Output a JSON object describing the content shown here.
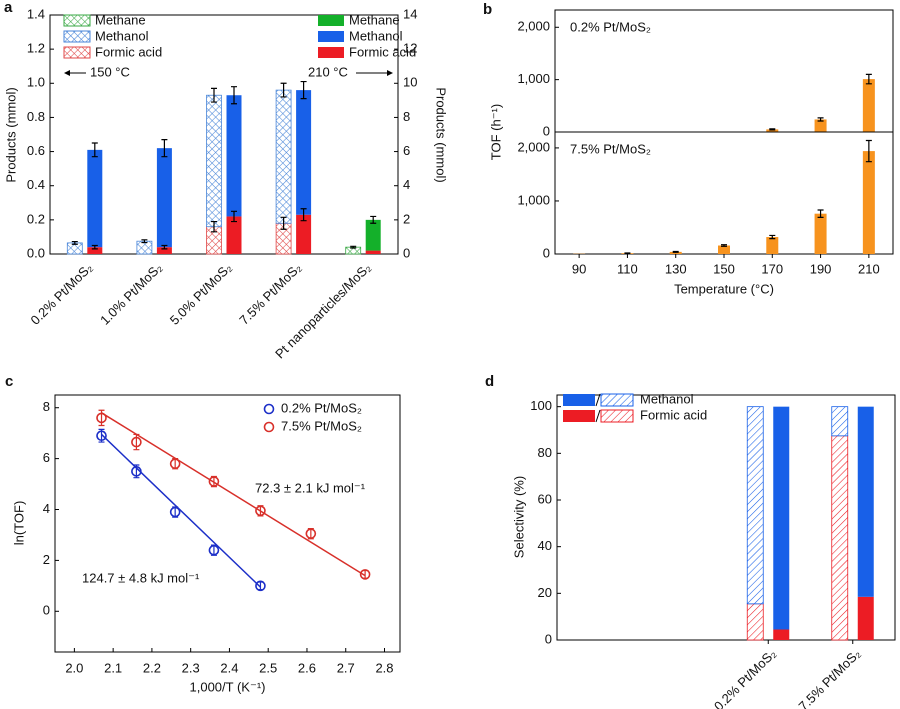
{
  "chart_data": [
    {
      "type": "bar",
      "panel": "a",
      "ylabel": "Products (mmol)",
      "y2label": "Products (mmol)",
      "categories": [
        "0.2% Pt/MoS₂",
        "1.0% Pt/MoS₂",
        "5.0% Pt/MoS₂",
        "7.5% Pt/MoS₂",
        "Pt nanoparticles/MoS₂"
      ],
      "ylim": [
        0,
        1.4
      ],
      "yticks": [
        {
          "value": 0,
          "label": "0.0"
        },
        0.2,
        0.4,
        0.6,
        0.8,
        {
          "value": 1,
          "label": "1.0"
        },
        1.2,
        1.4
      ],
      "y2lim": [
        0,
        14
      ],
      "y2ticks": [
        0,
        2,
        4,
        6,
        8,
        10,
        12,
        14
      ],
      "annotations": [
        "150 °C",
        "210 °C"
      ],
      "series": [
        {
          "name": "Methane",
          "style": "hatched",
          "color": "#3aa845",
          "values": [
            0,
            0,
            0,
            0,
            0.04
          ],
          "errors": [
            null,
            null,
            null,
            null,
            0.005
          ]
        },
        {
          "name": "Methanol",
          "style": "hatched",
          "color": "#4a86d8",
          "values": [
            0.065,
            0.075,
            0.77,
            0.78,
            0
          ],
          "errors": [
            0.008,
            0.008,
            0.04,
            0.04,
            null
          ]
        },
        {
          "name": "Formic acid",
          "style": "hatched",
          "color": "#e04848",
          "values": [
            0,
            0,
            0.16,
            0.18,
            0
          ],
          "errors": [
            null,
            null,
            0.03,
            0.035,
            null
          ]
        },
        {
          "name": "Methane",
          "style": "solid",
          "axis": "y2",
          "color": "#14b02a",
          "values": [
            0,
            0,
            0,
            0,
            1.8
          ],
          "errors": [
            null,
            null,
            null,
            null,
            0.2
          ]
        },
        {
          "name": "Methanol",
          "style": "solid",
          "axis": "y2",
          "color": "#1860e8",
          "values": [
            5.7,
            5.8,
            7.1,
            7.3,
            0
          ],
          "errors": [
            0.4,
            0.5,
            0.5,
            0.5,
            null
          ]
        },
        {
          "name": "Formic acid",
          "style": "solid",
          "axis": "y2",
          "color": "#ec1c24",
          "values": [
            0.4,
            0.4,
            2.2,
            2.3,
            0.2
          ],
          "errors": [
            0.1,
            0.1,
            0.3,
            0.35,
            null
          ]
        }
      ]
    },
    {
      "type": "bar",
      "panel": "b",
      "label": "0.2% Pt/MoS₂",
      "ylabel": "TOF (h⁻¹)",
      "color": "#f7931e",
      "values": [
        0,
        0,
        2,
        5,
        50,
        240,
        1010
      ],
      "errors": [
        null,
        null,
        null,
        null,
        10,
        30,
        90
      ],
      "ylim": [
        0,
        2330
      ],
      "yticks": [
        0,
        {
          "value": 1000,
          "label": "1,000"
        },
        {
          "value": 2000,
          "label": "2,000"
        }
      ]
    },
    {
      "type": "bar",
      "label": "7.5% Pt/MoS₂",
      "xlabel": "Temperature (°C)",
      "color": "#f7931e",
      "categories": [
        "90",
        "110",
        "130",
        "150",
        "170",
        "190",
        "210"
      ],
      "values": [
        5,
        15,
        40,
        160,
        320,
        760,
        1940
      ],
      "errors": [
        null,
        5,
        8,
        15,
        30,
        70,
        200
      ],
      "ylim": [
        0,
        2300
      ],
      "yticks": [
        0,
        {
          "value": 1000,
          "label": "1,000"
        },
        {
          "value": 2000,
          "label": "2,000"
        }
      ]
    },
    {
      "type": "scatter",
      "panel": "c",
      "xlabel": "1,000/T (K⁻¹)",
      "ylabel": "ln(TOF)",
      "xlim": [
        1.95,
        2.84
      ],
      "xticks": [
        {
          "value": 2,
          "label": "2.0"
        },
        2.1,
        2.2,
        2.3,
        2.4,
        2.5,
        2.6,
        2.7,
        2.8
      ],
      "ylim": [
        -1.6,
        8.5
      ],
      "yticks": [
        0,
        2,
        4,
        6,
        8
      ],
      "annotations": [
        "72.3 ± 2.1 kJ mol⁻¹",
        "124.7 ± 4.8 kJ mol⁻¹"
      ],
      "series": [
        {
          "name": "0.2% Pt/MoS₂",
          "color": "#1c2fc8",
          "x": [
            2.07,
            2.16,
            2.26,
            2.36,
            2.48
          ],
          "values": [
            6.9,
            5.5,
            3.9,
            2.4,
            1.0
          ],
          "errors": [
            0.25,
            0.25,
            0.2,
            0.2,
            0.15
          ],
          "fit": {
            "x": [
              2.07,
              2.48
            ],
            "values": [
              6.95,
              0.95
            ]
          }
        },
        {
          "name": "7.5% Pt/MoS₂",
          "color": "#d8302a",
          "x": [
            2.07,
            2.16,
            2.26,
            2.36,
            2.48,
            2.61,
            2.75
          ],
          "values": [
            7.6,
            6.65,
            5.8,
            5.1,
            3.95,
            3.05,
            1.45
          ],
          "errors": [
            0.3,
            0.3,
            0.2,
            0.2,
            0.2,
            0.2,
            0.15
          ],
          "fit": {
            "x": [
              2.07,
              2.75
            ],
            "values": [
              7.8,
              1.4
            ]
          }
        }
      ]
    },
    {
      "type": "bar",
      "panel": "d",
      "ylabel": "Selectivity (%)",
      "categories": [
        "0.2% Pt/MoS₂",
        "7.5% Pt/MoS₂"
      ],
      "ylim": [
        0,
        105
      ],
      "yticks": [
        0,
        20,
        40,
        60,
        80,
        100
      ],
      "series": [
        {
          "name": "Methanol",
          "color": "#1860e8",
          "values": [
            84.5,
            12.5
          ],
          "solid_values": [
            95.5,
            81.5
          ]
        },
        {
          "name": "Formic acid",
          "color": "#ec1c24",
          "values": [
            15.5,
            87.5
          ],
          "solid_values": [
            4.5,
            18.5
          ]
        }
      ]
    }
  ]
}
